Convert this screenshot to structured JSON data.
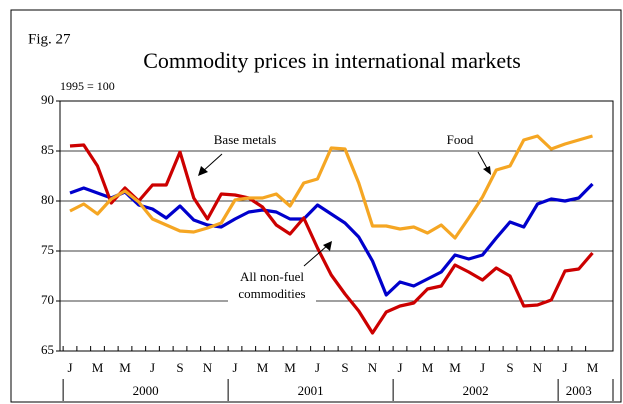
{
  "chart_data": {
    "type": "line",
    "figure_label": "Fig. 27",
    "title": "Commodity prices in international markets",
    "unit_label": "1995 = 100",
    "categories": [
      "J",
      null,
      "M",
      null,
      "M",
      null,
      "J",
      null,
      "S",
      null,
      "N",
      null,
      "J",
      null,
      "M",
      null,
      "M",
      null,
      "J",
      null,
      "S",
      null,
      "N",
      null,
      "J",
      null,
      "M",
      null,
      "M",
      null,
      "J",
      null,
      "S",
      null,
      "N",
      null,
      "J",
      null,
      "M"
    ],
    "year_labels": [
      "2000",
      "2001",
      "2002",
      "2003"
    ],
    "ylim": [
      65,
      90
    ],
    "yticks": [
      65,
      70,
      75,
      80,
      85,
      90
    ],
    "grid": true,
    "series": [
      {
        "name": "All non-fuel commodities",
        "color": "#0000cc",
        "values": [
          80.8,
          81.3,
          80.8,
          80.3,
          80.9,
          79.6,
          79.2,
          78.3,
          79.5,
          78.1,
          77.6,
          77.4,
          78.2,
          78.9,
          79.1,
          78.9,
          78.2,
          78.2,
          79.6,
          78.7,
          77.8,
          76.4,
          74.0,
          70.6,
          71.9,
          71.5,
          72.2,
          72.9,
          74.6,
          74.2,
          74.6,
          76.3,
          77.9,
          77.4,
          79.7,
          80.2,
          80.0,
          80.3,
          81.7
        ]
      },
      {
        "name": "Base metals",
        "color": "#cc0000",
        "values": [
          85.5,
          85.6,
          83.5,
          79.8,
          81.3,
          80.0,
          81.6,
          81.6,
          84.9,
          80.3,
          78.2,
          80.7,
          80.6,
          80.3,
          79.4,
          77.6,
          76.7,
          78.3,
          75.3,
          72.6,
          70.7,
          69.0,
          66.8,
          68.9,
          69.5,
          69.8,
          71.2,
          71.5,
          73.6,
          72.9,
          72.1,
          73.3,
          72.5,
          69.5,
          69.6,
          70.1,
          73.0,
          73.2,
          74.8
        ]
      },
      {
        "name": "Food",
        "color": "#f5a623",
        "values": [
          79.0,
          79.7,
          78.7,
          80.2,
          81.0,
          79.9,
          78.2,
          77.6,
          77.0,
          76.9,
          77.3,
          77.8,
          80.1,
          80.3,
          80.3,
          80.7,
          79.5,
          81.8,
          82.2,
          85.3,
          85.2,
          81.8,
          77.5,
          77.5,
          77.2,
          77.4,
          76.8,
          77.6,
          76.3,
          78.3,
          80.4,
          83.1,
          83.5,
          86.1,
          86.5,
          85.2,
          85.7,
          86.1,
          86.5
        ]
      }
    ]
  }
}
